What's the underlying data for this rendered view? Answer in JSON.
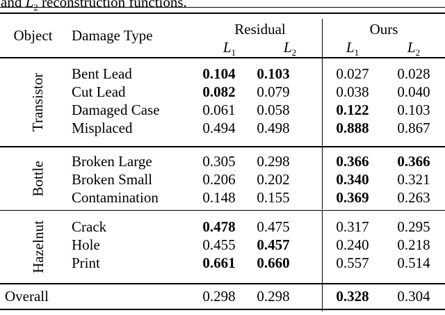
{
  "colors": {
    "background": "#ffffff",
    "text": "#000000",
    "rule": "#000000"
  },
  "caption": {
    "pre": "and",
    "math_letter": "L",
    "math_sub": "2",
    "post": "reconstruction functions."
  },
  "header": {
    "object_label": "Object",
    "damage_type_label": "Damage Type",
    "residual_group": "Residual",
    "ours_group": "Ours",
    "residual_l1": {
      "letter": "L",
      "sub": "1"
    },
    "residual_l2": {
      "letter": "L",
      "sub": "2"
    },
    "ours_l1": {
      "letter": "L",
      "sub": "1"
    },
    "ours_l2": {
      "letter": "L",
      "sub": "2"
    }
  },
  "sections": [
    {
      "object": "Transistor",
      "rows": [
        {
          "damage": "Bent Lead",
          "values": [
            "0.104",
            "0.103",
            "0.027",
            "0.028"
          ],
          "bold": [
            true,
            true,
            false,
            false
          ]
        },
        {
          "damage": "Cut Lead",
          "values": [
            "0.082",
            "0.079",
            "0.038",
            "0.040"
          ],
          "bold": [
            true,
            false,
            false,
            false
          ]
        },
        {
          "damage": "Damaged Case",
          "values": [
            "0.061",
            "0.058",
            "0.122",
            "0.103"
          ],
          "bold": [
            false,
            false,
            true,
            false
          ]
        },
        {
          "damage": "Misplaced",
          "values": [
            "0.494",
            "0.498",
            "0.888",
            "0.867"
          ],
          "bold": [
            false,
            false,
            true,
            false
          ]
        }
      ]
    },
    {
      "object": "Bottle",
      "rows": [
        {
          "damage": "Broken Large",
          "values": [
            "0.305",
            "0.298",
            "0.366",
            "0.366"
          ],
          "bold": [
            false,
            false,
            true,
            true
          ]
        },
        {
          "damage": "Broken Small",
          "values": [
            "0.206",
            "0.202",
            "0.340",
            "0.321"
          ],
          "bold": [
            false,
            false,
            true,
            false
          ]
        },
        {
          "damage": "Contamination",
          "values": [
            "0.148",
            "0.155",
            "0.369",
            "0.263"
          ],
          "bold": [
            false,
            false,
            true,
            false
          ]
        }
      ]
    },
    {
      "object": "Hazelnut",
      "rows": [
        {
          "damage": "Crack",
          "values": [
            "0.478",
            "0.475",
            "0.317",
            "0.295"
          ],
          "bold": [
            true,
            false,
            false,
            false
          ]
        },
        {
          "damage": "Hole",
          "values": [
            "0.455",
            "0.457",
            "0.240",
            "0.218"
          ],
          "bold": [
            false,
            true,
            false,
            false
          ]
        },
        {
          "damage": "Print",
          "values": [
            "0.661",
            "0.660",
            "0.557",
            "0.514"
          ],
          "bold": [
            true,
            true,
            false,
            false
          ]
        }
      ]
    }
  ],
  "overall": {
    "label": "Overall",
    "values": [
      "0.298",
      "0.298",
      "0.328",
      "0.304"
    ],
    "bold": [
      false,
      false,
      true,
      false
    ]
  }
}
